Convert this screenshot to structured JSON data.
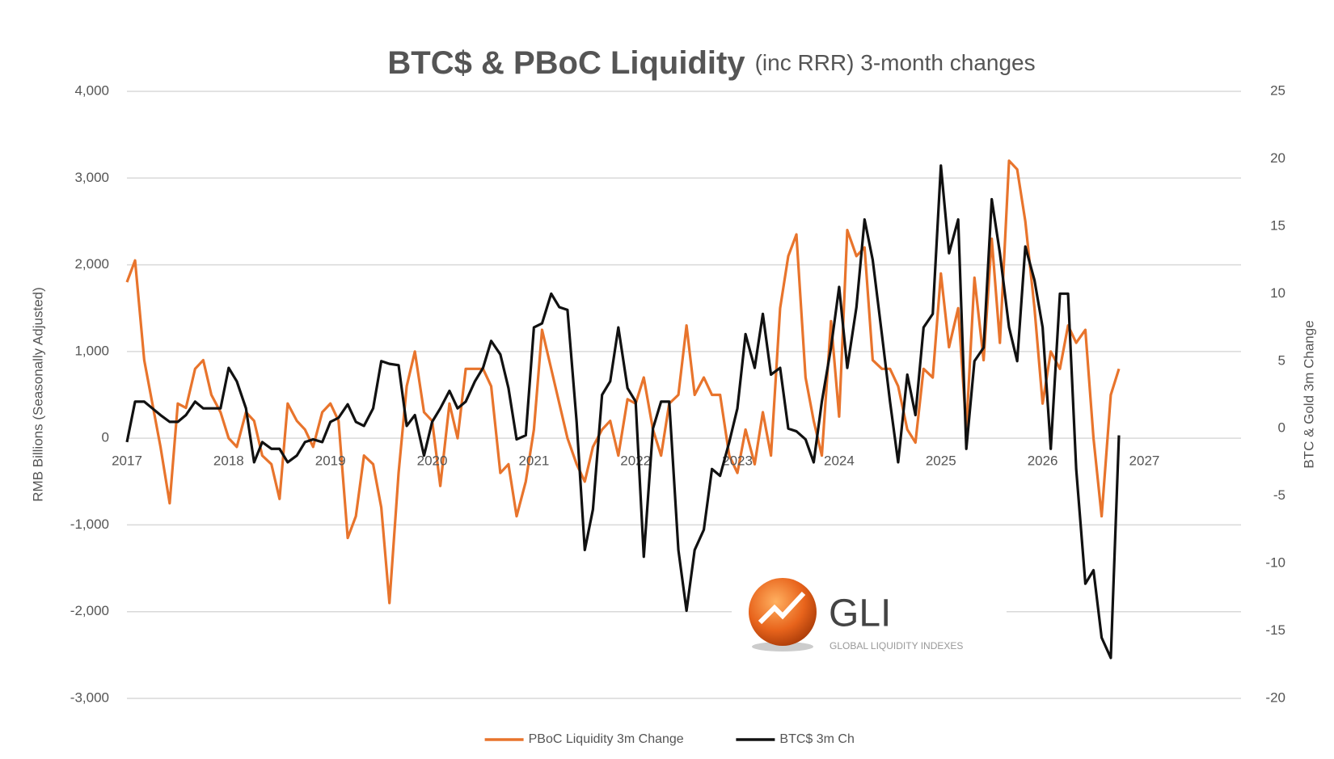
{
  "chart_data": {
    "type": "line",
    "title": "BTC$ & PBoC Liquidity",
    "subtitle": "(inc RRR) 3-month changes",
    "ylabel": "RMB Billions (Seasonally Adjusted)",
    "y2label": "BTC & Gold 3m Change",
    "watermark": {
      "title": "GLI",
      "subtitle": "GLOBAL LIQUIDITY INDEXES"
    },
    "grid": true,
    "legend": "bottom",
    "xlim": [
      2017,
      2027.95
    ],
    "xticks": [
      2017,
      2018,
      2019,
      2020,
      2021,
      2022,
      2023,
      2024,
      2025,
      2026,
      2027
    ],
    "ylim": [
      -3000,
      4000
    ],
    "yticks": [
      {
        "value": -3000,
        "label": "-3,000"
      },
      {
        "value": -2000,
        "label": "-2,000"
      },
      {
        "value": -1000,
        "label": "-1,000"
      },
      0,
      {
        "value": 1000,
        "label": "1,000"
      },
      {
        "value": 2000,
        "label": "2,000"
      },
      {
        "value": 3000,
        "label": "3,000"
      },
      {
        "value": 4000,
        "label": "4,000"
      }
    ],
    "y2lim": [
      -20,
      25
    ],
    "y2ticks": [
      -20,
      -15,
      -10,
      -5,
      0,
      5,
      10,
      15,
      20,
      25
    ],
    "x": [
      2017.0,
      2017.08,
      2017.17,
      2017.25,
      2017.33,
      2017.42,
      2017.5,
      2017.58,
      2017.67,
      2017.75,
      2017.83,
      2017.92,
      2018.0,
      2018.08,
      2018.17,
      2018.25,
      2018.33,
      2018.42,
      2018.5,
      2018.58,
      2018.67,
      2018.75,
      2018.83,
      2018.92,
      2019.0,
      2019.08,
      2019.17,
      2019.25,
      2019.33,
      2019.42,
      2019.5,
      2019.58,
      2019.67,
      2019.75,
      2019.83,
      2019.92,
      2020.0,
      2020.08,
      2020.17,
      2020.25,
      2020.33,
      2020.42,
      2020.5,
      2020.58,
      2020.67,
      2020.75,
      2020.83,
      2020.92,
      2021.0,
      2021.08,
      2021.17,
      2021.25,
      2021.33,
      2021.42,
      2021.5,
      2021.58,
      2021.67,
      2021.75,
      2021.83,
      2021.92,
      2022.0,
      2022.08,
      2022.17,
      2022.25,
      2022.33,
      2022.42,
      2022.5,
      2022.58,
      2022.67,
      2022.75,
      2022.83,
      2022.92,
      2023.0,
      2023.08,
      2023.17,
      2023.25,
      2023.33,
      2023.42,
      2023.5,
      2023.58,
      2023.67,
      2023.75,
      2023.83,
      2023.92,
      2024.0,
      2024.08,
      2024.17,
      2024.25,
      2024.33,
      2024.42,
      2024.5,
      2024.58,
      2024.67,
      2024.75,
      2024.83,
      2024.92,
      2025.0,
      2025.08,
      2025.17,
      2025.25,
      2025.33,
      2025.42,
      2025.5,
      2025.58,
      2025.67,
      2025.75,
      2025.83,
      2025.92,
      2026.0,
      2026.08,
      2026.17,
      2026.25,
      2026.33,
      2026.42,
      2026.5,
      2026.58,
      2026.67,
      2026.75
    ],
    "series": [
      {
        "name": "PBoC Liquidity 3m Change",
        "color": "#e8742c",
        "values": [
          1800,
          2050,
          900,
          400,
          -100,
          -750,
          400,
          350,
          800,
          900,
          500,
          300,
          0,
          -100,
          300,
          200,
          -200,
          -300,
          -700,
          400,
          200,
          100,
          -100,
          300,
          400,
          200,
          -1150,
          -900,
          -200,
          -300,
          -800,
          -1900,
          -400,
          600,
          1000,
          300,
          200,
          -550,
          400,
          0,
          800,
          800,
          800,
          600,
          -400,
          -300,
          -900,
          -500,
          100,
          1250,
          800,
          400,
          0,
          -300,
          -500,
          -100,
          100,
          200,
          -200,
          450,
          400,
          700,
          100,
          -200,
          400,
          500,
          1300,
          500,
          700,
          500,
          500,
          -200,
          -400,
          100,
          -300,
          300,
          -200,
          1500,
          2100,
          2350,
          700,
          200,
          -200,
          1350,
          250,
          2400,
          2100,
          2200,
          900,
          800,
          800,
          600,
          100,
          -50,
          800,
          700,
          1900,
          1050,
          1500,
          100,
          1850,
          900,
          2300,
          1100,
          3200,
          3100,
          2500,
          1500,
          400,
          1000,
          800,
          1300,
          1100,
          1250,
          0,
          -900,
          500,
          800
        ]
      },
      {
        "name": "BTC$ 3m Ch",
        "color": "#111111",
        "axis": "y2",
        "values": [
          -1,
          2,
          2,
          1.5,
          1,
          0.5,
          0.5,
          1,
          2,
          1.5,
          1.5,
          1.5,
          4.5,
          3.5,
          1.5,
          -2.5,
          -1,
          -1.5,
          -1.5,
          -2.5,
          -2,
          -1,
          -0.8,
          -1,
          0.5,
          0.8,
          1.8,
          0.5,
          0.2,
          1.5,
          5,
          4.8,
          4.7,
          0.2,
          1,
          -2,
          0.5,
          1.5,
          2.8,
          1.5,
          2,
          3.5,
          4.5,
          6.5,
          5.5,
          3,
          -0.8,
          -0.5,
          7.5,
          7.8,
          10,
          9,
          8.8,
          0.5,
          -9,
          -6,
          2.5,
          3.5,
          7.5,
          3,
          2,
          -9.5,
          0,
          2,
          2,
          -9,
          -13.5,
          -9,
          -7.5,
          -3,
          -3.5,
          -1,
          1.5,
          7,
          4.5,
          8.5,
          4,
          4.5,
          0,
          -0.2,
          -0.8,
          -2.5,
          2,
          6,
          10.5,
          4.5,
          9,
          15.5,
          12.5,
          7,
          2,
          -2.5,
          4,
          1,
          7.5,
          8.5,
          19.5,
          13,
          15.5,
          -1.5,
          5,
          6,
          17,
          13,
          7.5,
          5,
          13.5,
          11,
          7.5,
          -1.5,
          10,
          10,
          -3,
          -11.5,
          -10.5,
          -15.5,
          -17,
          -0.5
        ]
      }
    ]
  }
}
